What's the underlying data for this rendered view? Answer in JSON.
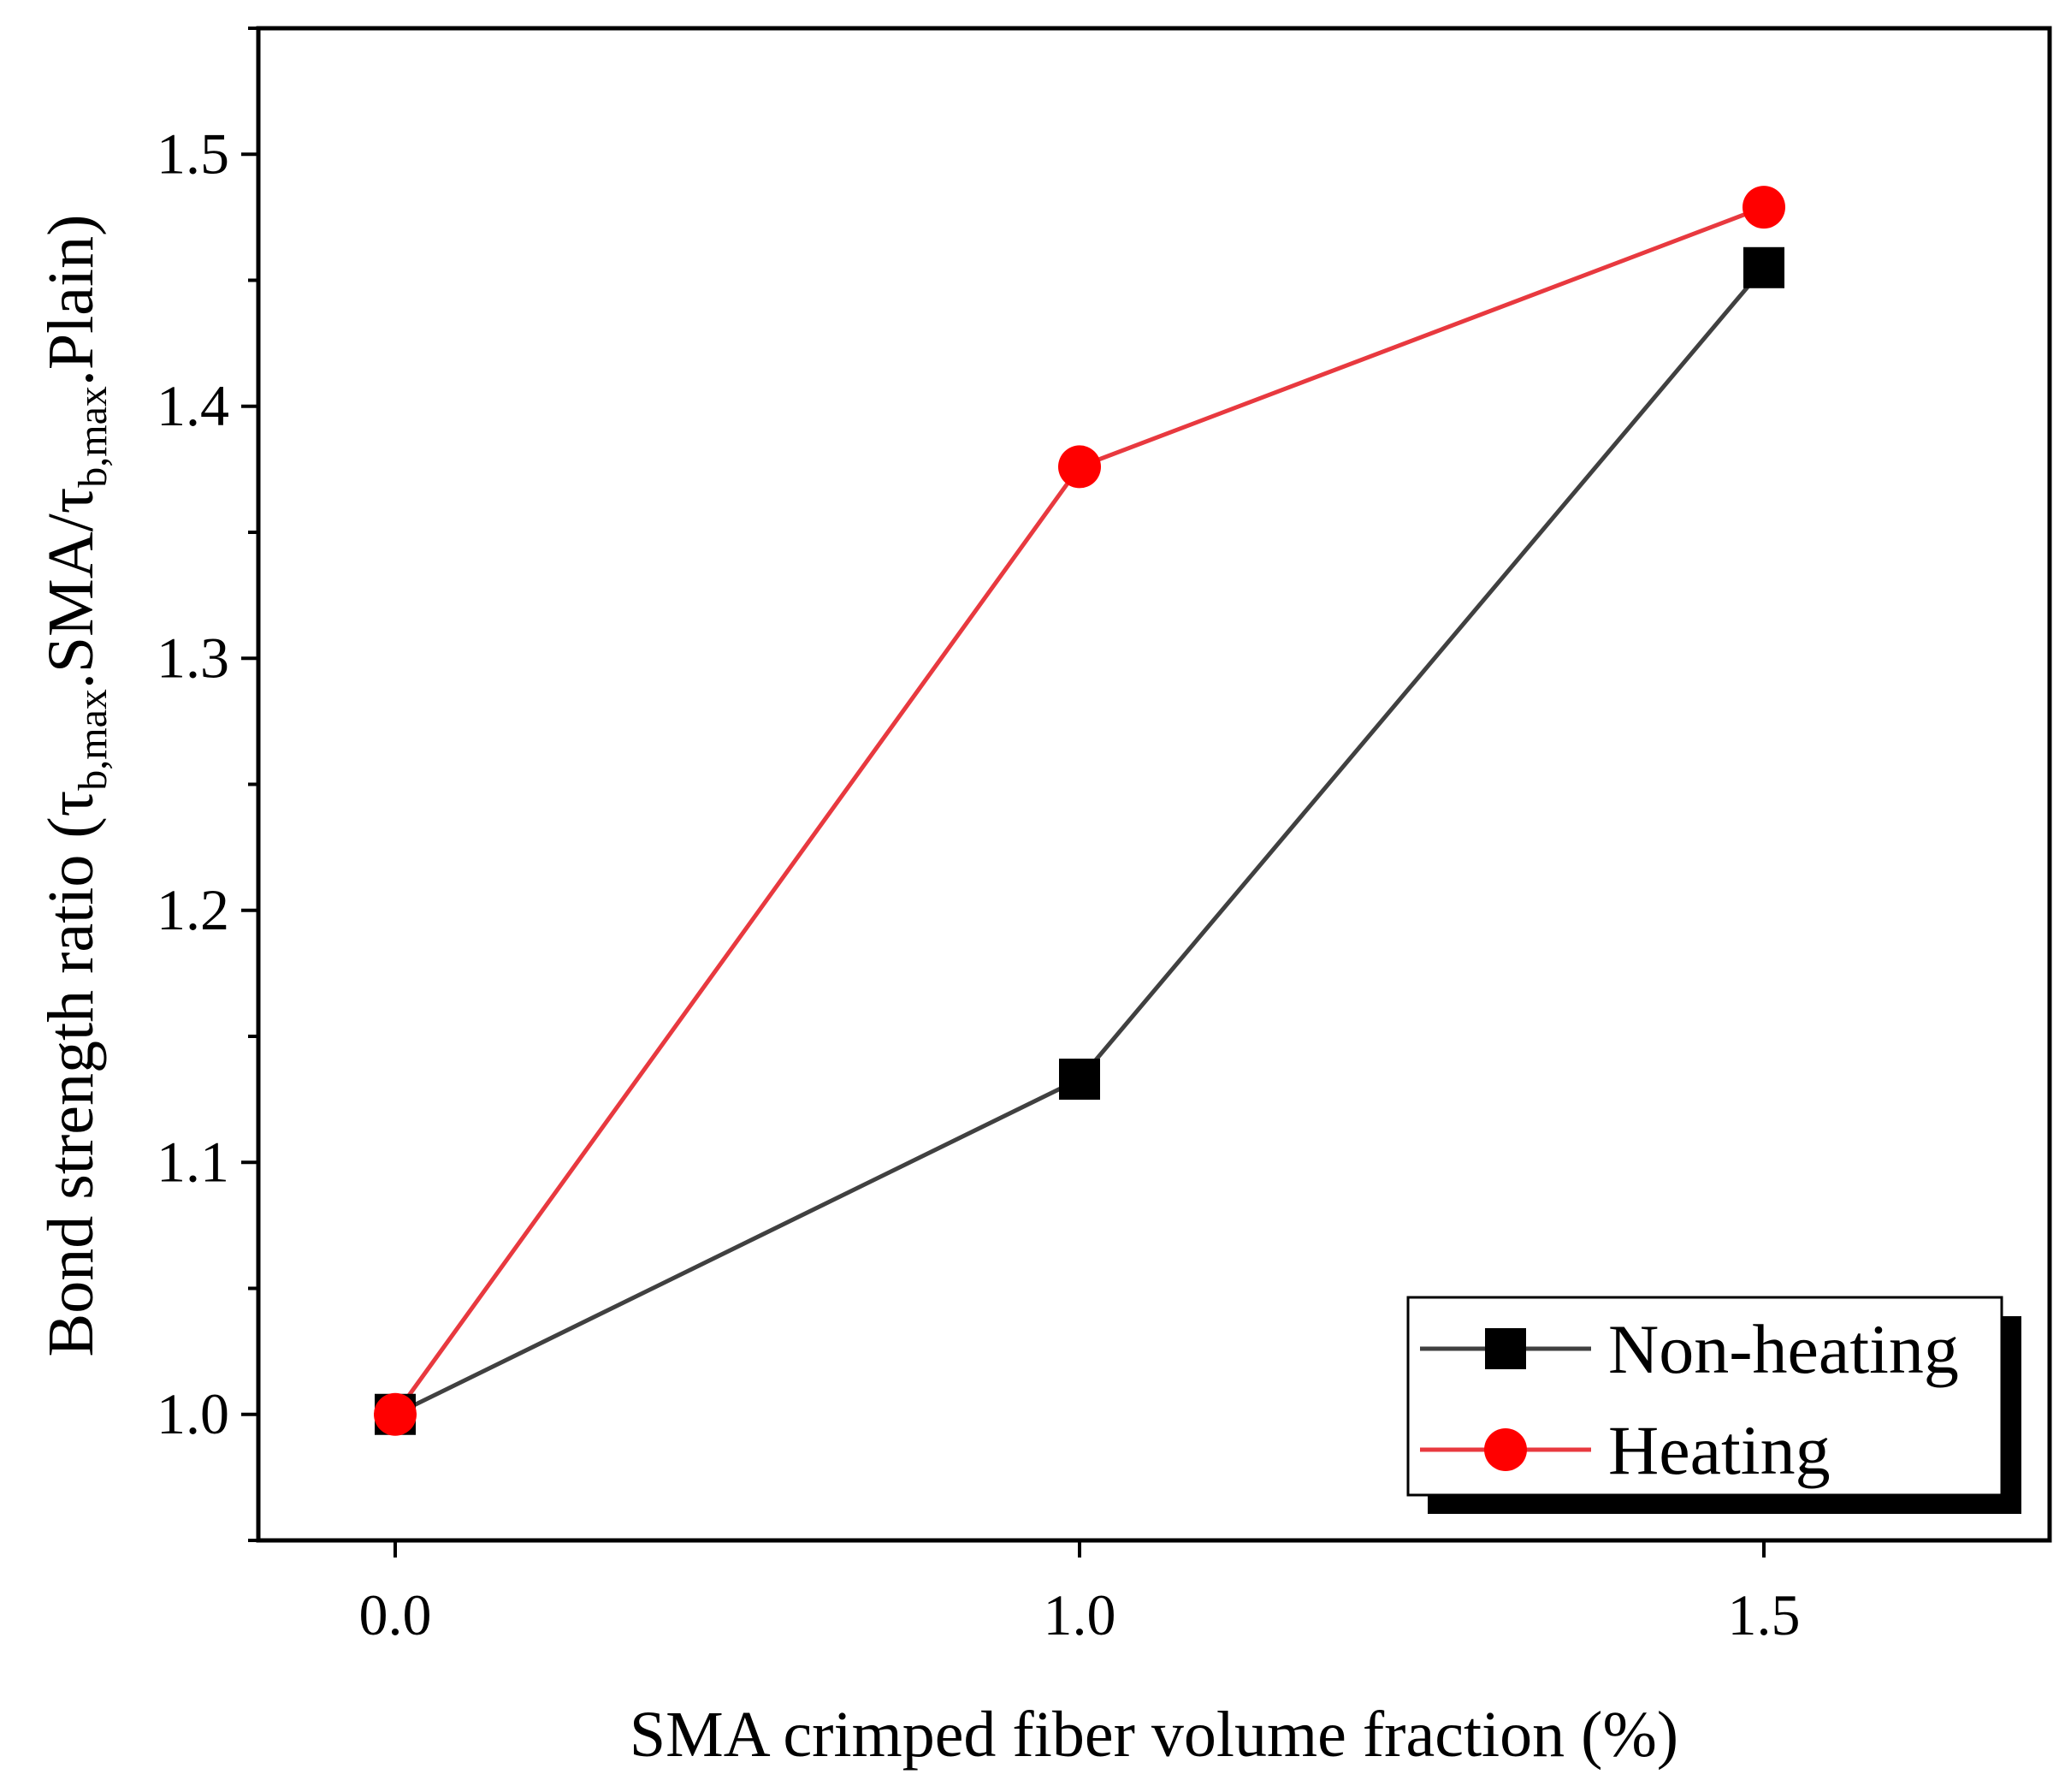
{
  "chart_data": {
    "type": "line",
    "title": "",
    "xlabel": "SMA crimped fiber volume fraction (%)",
    "ylabel": {
      "prefix": "Bond strength ratio (",
      "tau": "τ",
      "sub": "b,max",
      "mid": ".SMA/",
      "end": ".Plain)"
    },
    "categories": [
      "0.0",
      "1.0",
      "1.5"
    ],
    "yticks": [
      "1.0",
      "1.1",
      "1.2",
      "1.3",
      "1.4",
      "1.5"
    ],
    "ylim": [
      0.95,
      1.55
    ],
    "grid": false,
    "legend_position": "bottom-right",
    "series": [
      {
        "name": "Non-heating",
        "values": [
          1.0,
          1.133,
          1.455
        ],
        "color": "#404040",
        "marker": "square",
        "marker_color": "#000000"
      },
      {
        "name": "Heating",
        "values": [
          1.0,
          1.376,
          1.479
        ],
        "color": "#e8393f",
        "marker": "circle",
        "marker_color": "#ff0000"
      }
    ]
  }
}
